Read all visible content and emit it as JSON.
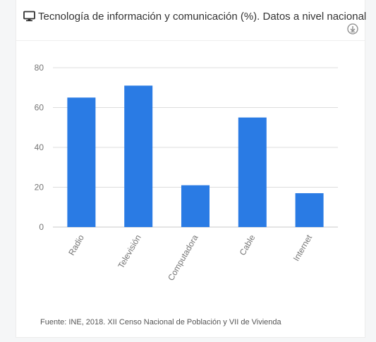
{
  "header": {
    "title": "Tecnología de información y comunicación (%). Datos a nivel nacional",
    "title_icon": "monitor-icon",
    "download_icon": "download-circle-icon"
  },
  "colors": {
    "bar": "#2a7be4",
    "grid": "#dddddd",
    "axis": "#c8c8c8"
  },
  "chart_data": {
    "type": "bar",
    "categories": [
      "Radio",
      "Televisión",
      "Computadora",
      "Cable",
      "Internet"
    ],
    "values": [
      65,
      71,
      21,
      55,
      17
    ],
    "ylim": [
      0,
      80
    ],
    "yticks": [
      0,
      20,
      40,
      60,
      80
    ],
    "grid": true,
    "legend": "none"
  },
  "footer": {
    "source": "Fuente: INE, 2018. XII Censo Nacional de Población y VII de Vivienda"
  }
}
